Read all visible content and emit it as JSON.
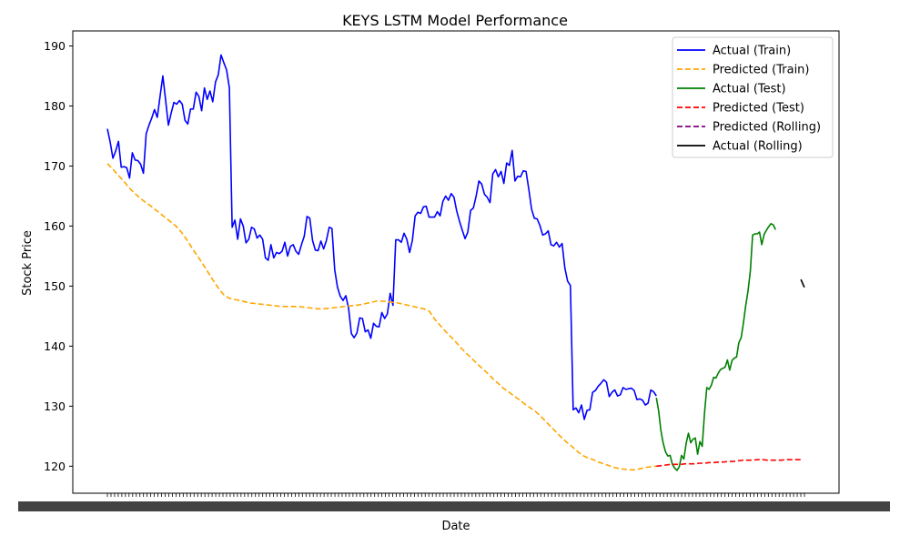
{
  "chart_data": {
    "type": "line",
    "title": "KEYS LSTM Model Performance",
    "xlabel": "Date",
    "ylabel": "Stock Price",
    "ylim": [
      115.5,
      192.5
    ],
    "yticks": [
      120,
      130,
      140,
      150,
      160,
      170,
      180,
      190
    ],
    "grid": false,
    "legend_position": "top-right",
    "x_tick_labels_note": "dense overlapping date labels, illegible",
    "series": [
      {
        "name": "Actual (Train)",
        "color": "#0000ff",
        "style": "solid",
        "x_range": [
          0,
          152
        ],
        "values": [
          176.2,
          174,
          171.3,
          172.5,
          174.1,
          169.8,
          169.9,
          169.7,
          168,
          172.2,
          171,
          170.9,
          170.3,
          168.8,
          175.4,
          176.8,
          178,
          179.4,
          178.1,
          181.6,
          185,
          181,
          176.8,
          178.8,
          180.6,
          180.3,
          180.9,
          180.3,
          177.6,
          177,
          179.5,
          179.5,
          182.3,
          181.6,
          179.2,
          183,
          181.1,
          182.5,
          180.7,
          184,
          185.2,
          188.5,
          187.2,
          186,
          183,
          159.8,
          161,
          157.8,
          161.2,
          160,
          157.2,
          157.8,
          159.8,
          159.5,
          158,
          158.5,
          157.8,
          154.7,
          154.3,
          156.9,
          154.7,
          155.6,
          155.4,
          155.8,
          157.3,
          155,
          156.6,
          156.9,
          155.8,
          155.3,
          156.9,
          158.3,
          161.6,
          161.3,
          157.6,
          156,
          155.9,
          157.5,
          156.2,
          157.6,
          159.8,
          159.6,
          152.7,
          149.8,
          148.3,
          147.6,
          148.4,
          146.3,
          142.1,
          141.4,
          142.2,
          144.7,
          144.6,
          142.4,
          142.7,
          141.3,
          143.8,
          143.3,
          143.2,
          145.6,
          144.6,
          145.4,
          148.8,
          146.8,
          157.7,
          157.7,
          157.3,
          158.8,
          157.8,
          155.6,
          157.6,
          161.7,
          162.3,
          162.1,
          163.2,
          163.3,
          161.5,
          161.5,
          161.5,
          162.4,
          161.7,
          164.1,
          165,
          164.3,
          165.4,
          164.8,
          162.5,
          160.8,
          159.3,
          157.9,
          159,
          162.6,
          163,
          165,
          167.5,
          167,
          165.3,
          164.8,
          163.9,
          168.7,
          169.4,
          168.2,
          169.1,
          167.1,
          170.5,
          170.1,
          172.6,
          167.5,
          168.3,
          168.2,
          169.2,
          169.1,
          166.1,
          162.8,
          161.3,
          161.2,
          160.1,
          158.5,
          158.7,
          159.2,
          156.9,
          156.7,
          157.3,
          156.5,
          157.1,
          153,
          150.8,
          150.1,
          129.4,
          129.7,
          128.9,
          130.2,
          127.8,
          129.3,
          129.4,
          132.3,
          132.6,
          133.3,
          133.8,
          134.4,
          134,
          131.6,
          132.3,
          132.7,
          131.7,
          131.9,
          133.1,
          132.8,
          132.9,
          133,
          132.6,
          131.1,
          131.2,
          131,
          130.2,
          130.5,
          132.7,
          132.4,
          131.7
        ]
      },
      {
        "name": "Predicted (Train)",
        "color": "#ffa500",
        "style": "dashed",
        "x_range": [
          0,
          152
        ],
        "values": [
          170.4,
          169.5,
          168.5,
          167.6,
          166.5,
          165.6,
          164.8,
          164.1,
          163.5,
          162.8,
          162.1,
          161.4,
          160.7,
          160,
          159,
          157.8,
          156.4,
          155.1,
          153.8,
          152.4,
          151,
          149.7,
          148.6,
          148,
          147.8,
          147.6,
          147.4,
          147.2,
          147.1,
          147,
          146.9,
          146.8,
          146.7,
          146.6,
          146.6,
          146.6,
          146.6,
          146.5,
          146.4,
          146.3,
          146.2,
          146.2,
          146.3,
          146.4,
          146.5,
          146.6,
          146.7,
          146.8,
          146.9,
          147.1,
          147.3,
          147.5,
          147.5,
          147.4,
          147.3,
          147.2,
          147,
          146.8,
          146.6,
          146.4,
          146.2,
          145.8,
          144.5,
          143.5,
          142.5,
          141.6,
          140.7,
          139.7,
          138.8,
          138,
          137.1,
          136.3,
          135.5,
          134.6,
          133.8,
          133,
          132.4,
          131.7,
          131.1,
          130.4,
          129.8,
          129.2,
          128.4,
          127.5,
          126.6,
          125.7,
          124.8,
          124,
          123.3,
          122.5,
          121.8,
          121.4,
          121.1,
          120.7,
          120.4,
          120.1,
          119.8,
          119.6,
          119.5,
          119.4,
          119.4,
          119.6,
          119.8,
          119.9,
          120
        ]
      },
      {
        "name": "Actual (Test)",
        "color": "#008000",
        "style": "solid",
        "x_range": [
          152,
          185
        ],
        "values": [
          131.4,
          129.2,
          125.9,
          123.8,
          122.4,
          121.7,
          121.8,
          120.3,
          119.7,
          119.3,
          119.9,
          121.8,
          121.2,
          123.8,
          125.5,
          123.9,
          124.5,
          124.7,
          122,
          124.1,
          123.3,
          128.8,
          133.1,
          132.8,
          133.5,
          134.8,
          134.7,
          135.5,
          136.1,
          136.3,
          136.5,
          137.7,
          136,
          137.6,
          138,
          138.2,
          140.6,
          141.4,
          143.9,
          146.8,
          149.2,
          152.5,
          158.5,
          158.7,
          158.7,
          159,
          156.9,
          158.6,
          159.3,
          159.9,
          160.4,
          160.2,
          159.4
        ]
      },
      {
        "name": "Predicted (Test)",
        "color": "#ff0000",
        "style": "dashed",
        "x_range": [
          152,
          192
        ],
        "values": [
          120,
          120.1,
          120.2,
          120.3,
          120.3,
          120.3,
          120.4,
          120.4,
          120.4,
          120.5,
          120.5,
          120.6,
          120.6,
          120.7,
          120.7,
          120.8,
          120.8,
          120.9,
          121,
          121,
          121,
          121.1,
          121.1,
          121,
          121,
          121,
          121,
          121.1,
          121.1,
          121.1,
          121.1
        ]
      },
      {
        "name": "Predicted (Rolling)",
        "color": "#800080",
        "style": "dashed",
        "x_range": [
          192,
          193
        ],
        "values": []
      },
      {
        "name": "Actual (Rolling)",
        "color": "#000000",
        "style": "solid",
        "x_range": [
          192,
          193
        ],
        "values": [
          151.1,
          150.7,
          150.2,
          149.8
        ]
      }
    ]
  }
}
